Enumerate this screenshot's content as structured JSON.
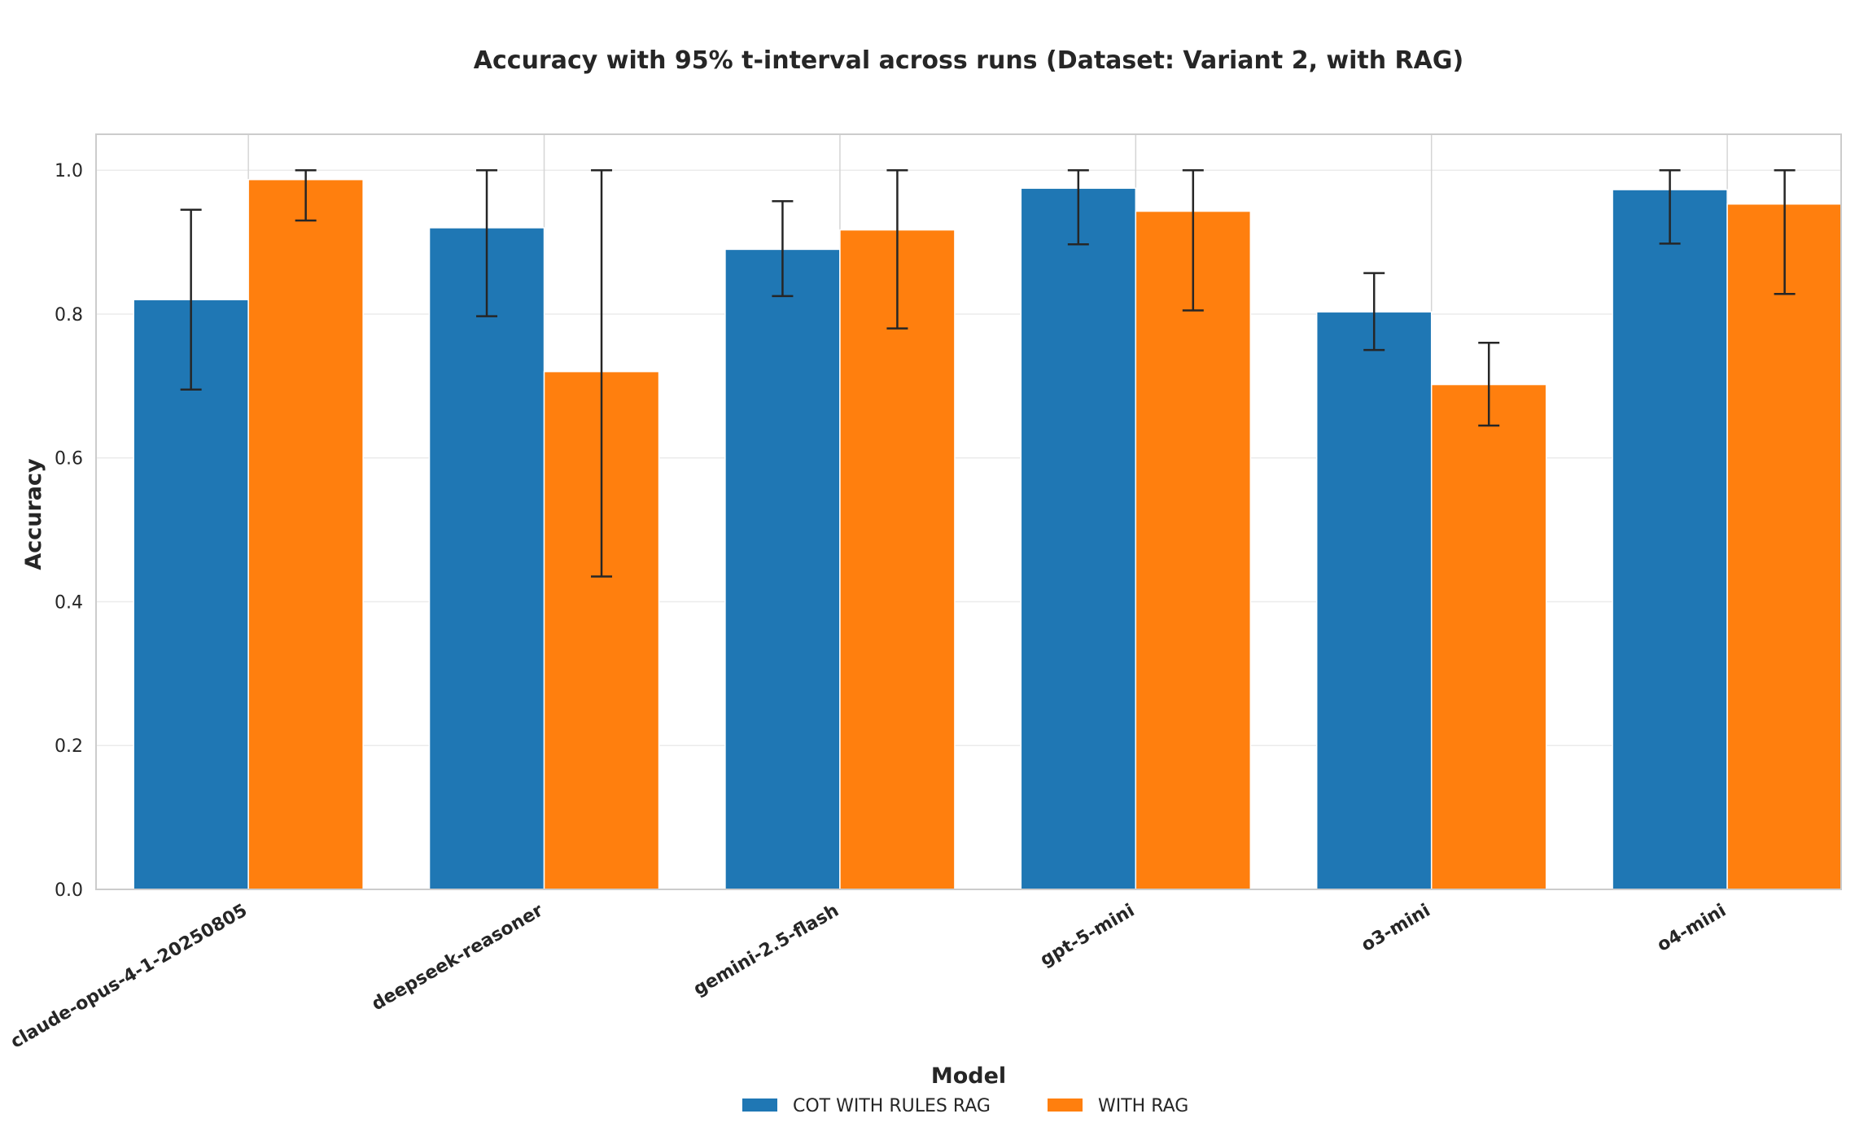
{
  "chart_data": {
    "type": "bar",
    "title": "Accuracy with 95% t-interval across runs (Dataset: Variant 2, with RAG)",
    "xlabel": "",
    "ylabel": "Accuracy",
    "ylim": [
      0,
      1.05
    ],
    "yticks": [
      0.0,
      0.2,
      0.4,
      0.6,
      0.8,
      1.0
    ],
    "ytick_labels": [
      "0.0",
      "0.2",
      "0.4",
      "0.6",
      "0.8",
      "1.0"
    ],
    "grid": true,
    "categories": [
      "claude-opus-4-1-20250805",
      "deepseek-reasoner",
      "gemini-2.5-flash",
      "gpt-5-mini",
      "o3-mini",
      "o4-mini"
    ],
    "series": [
      {
        "name": "COT_WITH_RULES_RAG",
        "label": "COT WITH RULES RAG",
        "color": "#1f77b4",
        "values": [
          0.82,
          0.92,
          0.89,
          0.975,
          0.803,
          0.973
        ],
        "err_low": [
          0.695,
          0.797,
          0.825,
          0.897,
          0.75,
          0.898
        ],
        "err_high": [
          0.945,
          1.0,
          0.957,
          1.0,
          0.857,
          1.0
        ]
      },
      {
        "name": "WITH_RAG",
        "label": "WITH RAG",
        "color": "#ff7f0e",
        "values": [
          0.987,
          0.72,
          0.917,
          0.943,
          0.702,
          0.953
        ],
        "err_low": [
          0.93,
          0.435,
          0.78,
          0.805,
          0.645,
          0.828
        ],
        "err_high": [
          1.0,
          1.0,
          1.0,
          1.0,
          0.76,
          1.0
        ]
      }
    ],
    "legend_title": "Model",
    "legend_position": "bottom-center"
  }
}
